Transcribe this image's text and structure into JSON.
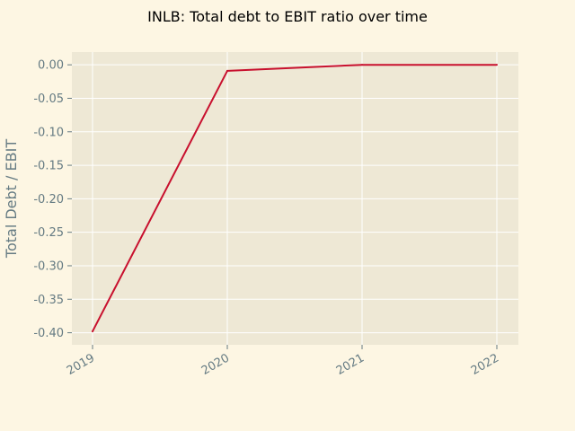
{
  "chart_data": {
    "type": "line",
    "title": "INLB: Total debt to EBIT ratio over time",
    "xlabel": "",
    "ylabel": "Total Debt / EBIT",
    "x": [
      "2019",
      "2020",
      "2021",
      "2022"
    ],
    "series": [
      {
        "values": [
          -0.398,
          -0.009,
          0.0,
          0.0
        ]
      }
    ],
    "xticks": [
      "2019",
      "2020",
      "2021",
      "2022"
    ],
    "yticks": [
      "0.00",
      "-0.05",
      "-0.10",
      "-0.15",
      "-0.20",
      "-0.25",
      "-0.30",
      "-0.35",
      "-0.40"
    ],
    "ytick_values": [
      0.0,
      -0.05,
      -0.1,
      -0.15,
      -0.2,
      -0.25,
      -0.3,
      -0.35,
      -0.4
    ],
    "ylim": [
      -0.418,
      0.019
    ],
    "grid": true,
    "colors": {
      "background": "#fdf6e3",
      "plot_area": "#eee8d5",
      "grid": "#ffffff",
      "line": "#c8102e",
      "text": "#657b83",
      "title": "#000000"
    }
  }
}
